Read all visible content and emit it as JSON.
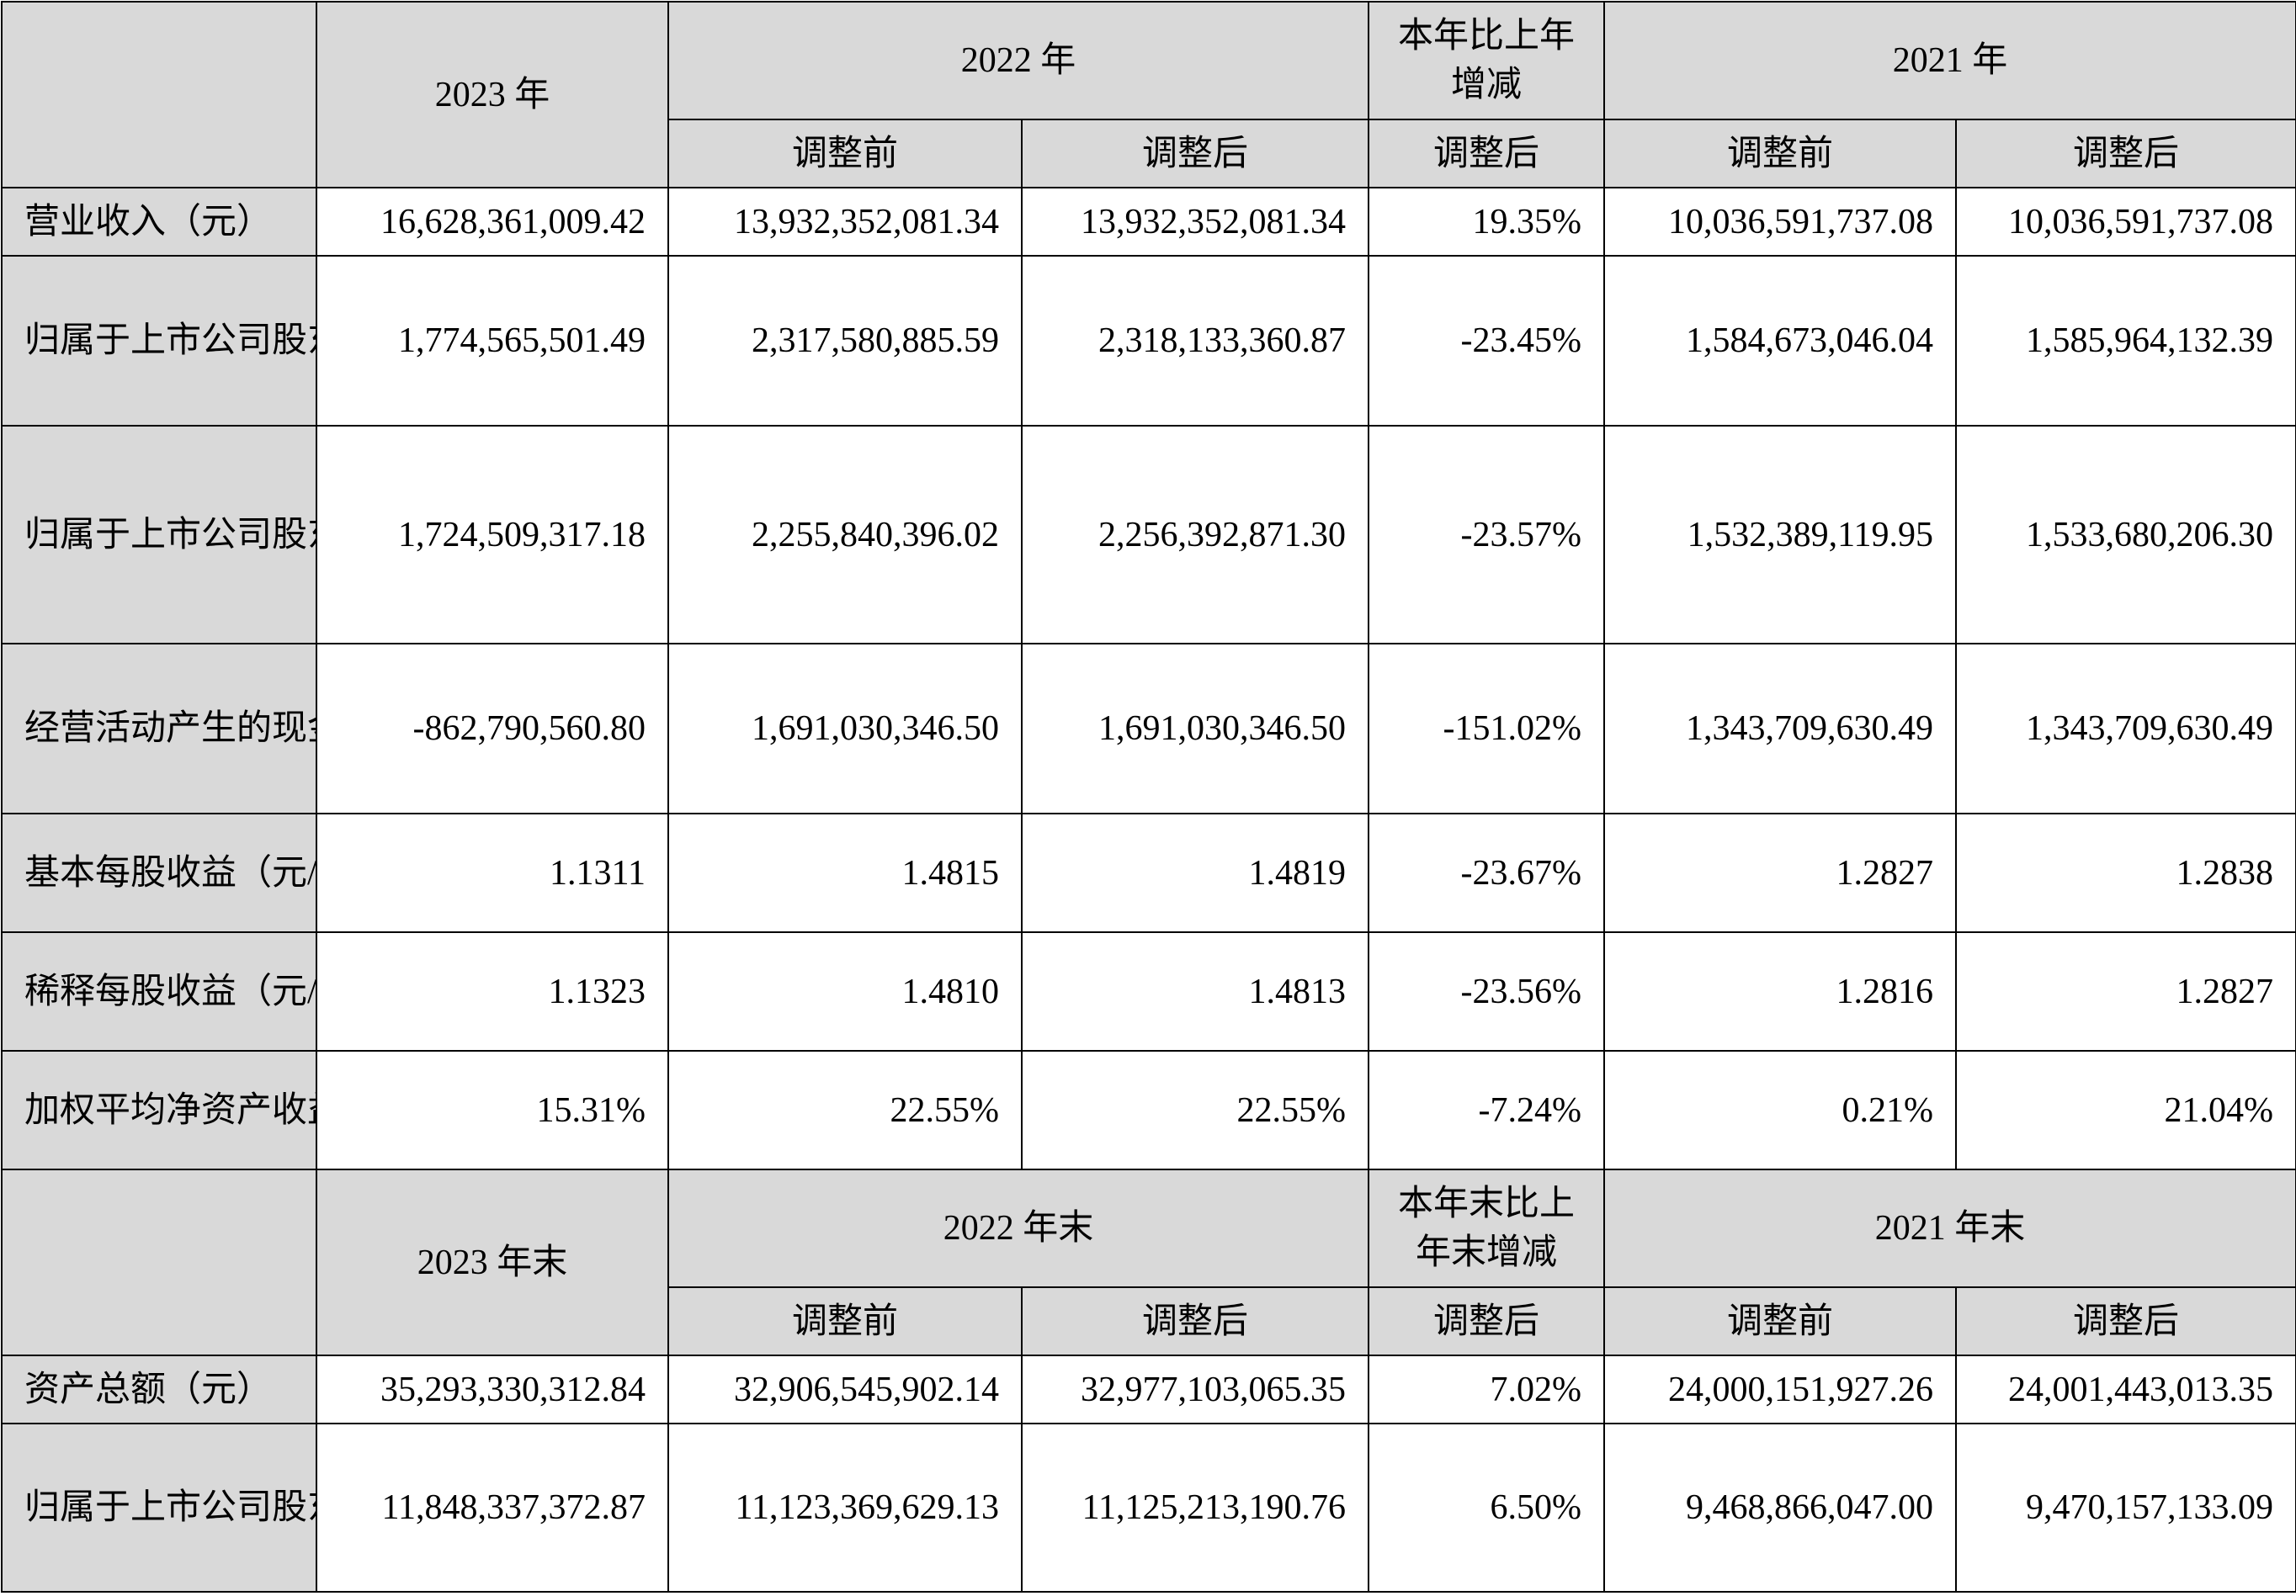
{
  "income_table": {
    "header": {
      "year_2023": "2023 年",
      "year_2022": "2022 年",
      "change": "本年比上年增减",
      "year_2021": "2021 年",
      "before_adjustment": "调整前",
      "after_adjustment": "调整后"
    },
    "rows": [
      {
        "label": "营业收入（元）",
        "y2023": "16,628,361,009.42",
        "y2022_before": "13,932,352,081.34",
        "y2022_after": "13,932,352,081.34",
        "change": "19.35%",
        "y2021_before": "10,036,591,737.08",
        "y2021_after": "10,036,591,737.08"
      },
      {
        "label": "归属于上市公司股东的净利润（元）",
        "y2023": "1,774,565,501.49",
        "y2022_before": "2,317,580,885.59",
        "y2022_after": "2,318,133,360.87",
        "change": "-23.45%",
        "y2021_before": "1,584,673,046.04",
        "y2021_after": "1,585,964,132.39"
      },
      {
        "label": "归属于上市公司股东的扣除非经常性损益的净利润（元）",
        "y2023": "1,724,509,317.18",
        "y2022_before": "2,255,840,396.02",
        "y2022_after": "2,256,392,871.30",
        "change": "-23.57%",
        "y2021_before": "1,532,389,119.95",
        "y2021_after": "1,533,680,206.30"
      },
      {
        "label": "经营活动产生的现金流量净额（元）",
        "y2023": "-862,790,560.80",
        "y2022_before": "1,691,030,346.50",
        "y2022_after": "1,691,030,346.50",
        "change": "-151.02%",
        "y2021_before": "1,343,709,630.49",
        "y2021_after": "1,343,709,630.49"
      },
      {
        "label": "基本每股收益（元/股）",
        "y2023": "1.1311",
        "y2022_before": "1.4815",
        "y2022_after": "1.4819",
        "change": "-23.67%",
        "y2021_before": "1.2827",
        "y2021_after": "1.2838"
      },
      {
        "label": "稀释每股收益（元/股）",
        "y2023": "1.1323",
        "y2022_before": "1.4810",
        "y2022_after": "1.4813",
        "change": "-23.56%",
        "y2021_before": "1.2816",
        "y2021_after": "1.2827"
      },
      {
        "label": "加权平均净资产收益率",
        "y2023": "15.31%",
        "y2022_before": "22.55%",
        "y2022_after": "22.55%",
        "change": "-7.24%",
        "y2021_before": "0.21%",
        "y2021_after": "21.04%"
      }
    ]
  },
  "balance_table": {
    "header": {
      "year_2023": "2023 年末",
      "year_2022": "2022 年末",
      "change": "本年末比上年末增减",
      "year_2021": "2021 年末",
      "before_adjustment": "调整前",
      "after_adjustment": "调整后"
    },
    "rows": [
      {
        "label": "资产总额（元）",
        "y2023": "35,293,330,312.84",
        "y2022_before": "32,906,545,902.14",
        "y2022_after": "32,977,103,065.35",
        "change": "7.02%",
        "y2021_before": "24,000,151,927.26",
        "y2021_after": "24,001,443,013.35"
      },
      {
        "label": "归属于上市公司股东的净资产（元）",
        "y2023": "11,848,337,372.87",
        "y2022_before": "11,123,369,629.13",
        "y2022_after": "11,125,213,190.76",
        "change": "6.50%",
        "y2021_before": "9,468,866,047.00",
        "y2021_after": "9,470,157,133.09"
      }
    ]
  }
}
